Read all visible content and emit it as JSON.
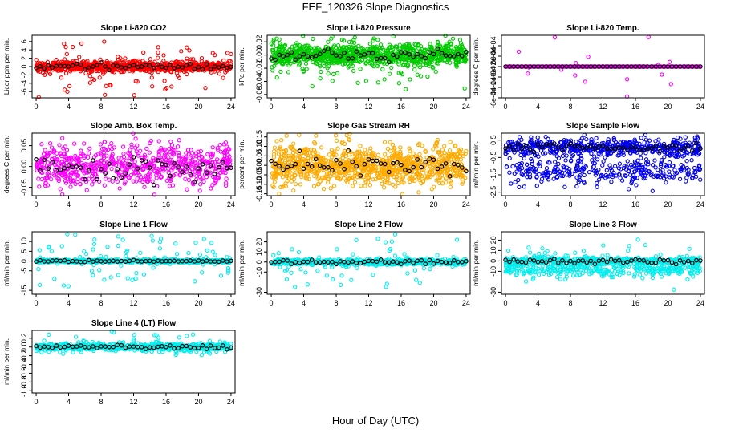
{
  "page": {
    "title": "FEF_120326  Slope Diagnostics",
    "xlabel": "Hour of Day (UTC)"
  },
  "chart_data": [
    {
      "type": "scatter",
      "title": "Slope Li-820 CO2",
      "ylabel": "Licor ppm per min.",
      "xlim": [
        -0.5,
        24.5
      ],
      "ylim": [
        -7.5,
        7.5
      ],
      "x_ticks": [
        0,
        4,
        8,
        12,
        16,
        20,
        24
      ],
      "y_ticks": [
        -6,
        -4,
        -2,
        0,
        2,
        4,
        6
      ],
      "colors": {
        "all": "#ff0000",
        "mean": "#000000"
      },
      "distribution": {
        "center": 0,
        "spread": 0.6,
        "outlier_spread": 3.5,
        "density": 900
      }
    },
    {
      "type": "scatter",
      "title": "Slope Li-820 Pressure",
      "ylabel": "kPa per min.",
      "xlim": [
        -0.5,
        24.5
      ],
      "ylim": [
        -0.065,
        0.03
      ],
      "x_ticks": [
        0,
        4,
        8,
        12,
        16,
        20,
        24
      ],
      "y_ticks": [
        -0.06,
        -0.04,
        -0.02,
        0.0,
        0.02
      ],
      "colors": {
        "all": "#00cc00",
        "mean": "#000000"
      },
      "distribution": {
        "center": 0.0,
        "spread": 0.008,
        "outlier_spread": 0.025,
        "density": 1100
      }
    },
    {
      "type": "scatter",
      "title": "Slope Li-820 Temp.",
      "ylabel": "degrees C per min.",
      "xlim": [
        -0.5,
        24.5
      ],
      "ylim": [
        -0.0006,
        0.0006
      ],
      "x_ticks": [
        0,
        4,
        8,
        12,
        16,
        20,
        24
      ],
      "y_ticks": [
        -0.0006,
        -0.0004,
        -0.0002,
        0.0,
        0.0002,
        0.0004
      ],
      "colors": {
        "all": "#ff00ff",
        "mean": "#000000"
      },
      "distribution": {
        "center": 0.0,
        "spread": 0.0,
        "outlier_spread": 0.0005,
        "density": 500
      }
    },
    {
      "type": "scatter",
      "title": "Slope Amb. Box Temp.",
      "ylabel": "degrees C per min.",
      "xlim": [
        -0.5,
        24.5
      ],
      "ylim": [
        -0.07,
        0.08
      ],
      "x_ticks": [
        0,
        4,
        8,
        12,
        16,
        20,
        24
      ],
      "y_ticks": [
        -0.05,
        0.0,
        0.05
      ],
      "colors": {
        "all": "#ff00ff",
        "mean": "#000000"
      },
      "distribution": {
        "center": 0.0,
        "spread": 0.025,
        "outlier_spread": 0.045,
        "density": 700
      }
    },
    {
      "type": "scatter",
      "title": "Slope Gas Stream RH",
      "ylabel": "percent per min.",
      "xlim": [
        -0.5,
        24.5
      ],
      "ylim": [
        -0.16,
        0.17
      ],
      "x_ticks": [
        0,
        4,
        8,
        12,
        16,
        20,
        24
      ],
      "y_ticks": [
        -0.15,
        -0.1,
        -0.05,
        0.0,
        0.05,
        0.1,
        0.15
      ],
      "colors": {
        "all": "#ffaa00",
        "mean": "#000000"
      },
      "distribution": {
        "center": 0.0,
        "spread": 0.05,
        "outlier_spread": 0.1,
        "density": 1000
      }
    },
    {
      "type": "scatter",
      "title": "Slope Sample Flow",
      "ylabel": "ml/min per min.",
      "xlim": [
        -0.5,
        24.5
      ],
      "ylim": [
        -2.7,
        0.9
      ],
      "x_ticks": [
        0,
        4,
        8,
        12,
        16,
        20,
        24
      ],
      "y_ticks": [
        -2.5,
        -1.5,
        -0.5,
        0.5
      ],
      "colors": {
        "all": "#0000ee",
        "mean": "#000000"
      },
      "distribution": {
        "center": 0.1,
        "spread": 0.25,
        "outlier_spread": 0.6,
        "density": 800,
        "band": -1.3
      }
    },
    {
      "type": "scatter",
      "title": "Slope Line 1 Flow",
      "ylabel": "ml/min per min.",
      "xlim": [
        -0.5,
        24.5
      ],
      "ylim": [
        -17,
        15
      ],
      "x_ticks": [
        0,
        4,
        8,
        12,
        16,
        20,
        24
      ],
      "y_ticks": [
        -15,
        -5,
        0,
        5,
        10
      ],
      "colors": {
        "all": "#00eeee",
        "mean": "#000000"
      },
      "distribution": {
        "center": 0,
        "spread": 0.4,
        "outlier_spread": 8,
        "density": 700
      }
    },
    {
      "type": "scatter",
      "title": "Slope Line 2 Flow",
      "ylabel": "ml/min per min.",
      "xlim": [
        -0.5,
        24.5
      ],
      "ylim": [
        -32,
        30
      ],
      "x_ticks": [
        0,
        4,
        8,
        12,
        16,
        20,
        24
      ],
      "y_ticks": [
        -30,
        -10,
        0,
        10,
        20
      ],
      "colors": {
        "all": "#00eeee",
        "mean": "#000000"
      },
      "distribution": {
        "center": 0,
        "spread": 1.5,
        "outlier_spread": 14,
        "density": 700
      }
    },
    {
      "type": "scatter",
      "title": "Slope Line 3 Flow",
      "ylabel": "ml/min per min.",
      "xlim": [
        -0.5,
        24.5
      ],
      "ylim": [
        -32,
        28
      ],
      "x_ticks": [
        0,
        4,
        8,
        12,
        16,
        20,
        24
      ],
      "y_ticks": [
        -30,
        -10,
        0,
        10,
        20
      ],
      "colors": {
        "all": "#00eeee",
        "mean": "#000000"
      },
      "distribution": {
        "center": 0,
        "spread": 2.0,
        "outlier_spread": 10,
        "density": 800,
        "band": -9
      }
    },
    {
      "type": "scatter",
      "title": "Slope Line 4 (LT) Flow",
      "ylabel": "ml/min per min.",
      "xlim": [
        -0.5,
        24.5
      ],
      "ylim": [
        -1.05,
        0.38
      ],
      "x_ticks": [
        0,
        4,
        8,
        12,
        16,
        20,
        24
      ],
      "y_ticks": [
        -1.0,
        -0.8,
        -0.6,
        -0.4,
        -0.2,
        0.0,
        0.2
      ],
      "colors": {
        "all": "#00eeee",
        "mean": "#000000"
      },
      "distribution": {
        "center": 0.0,
        "spread": 0.04,
        "outlier_spread": 0.12,
        "density": 700
      }
    }
  ]
}
